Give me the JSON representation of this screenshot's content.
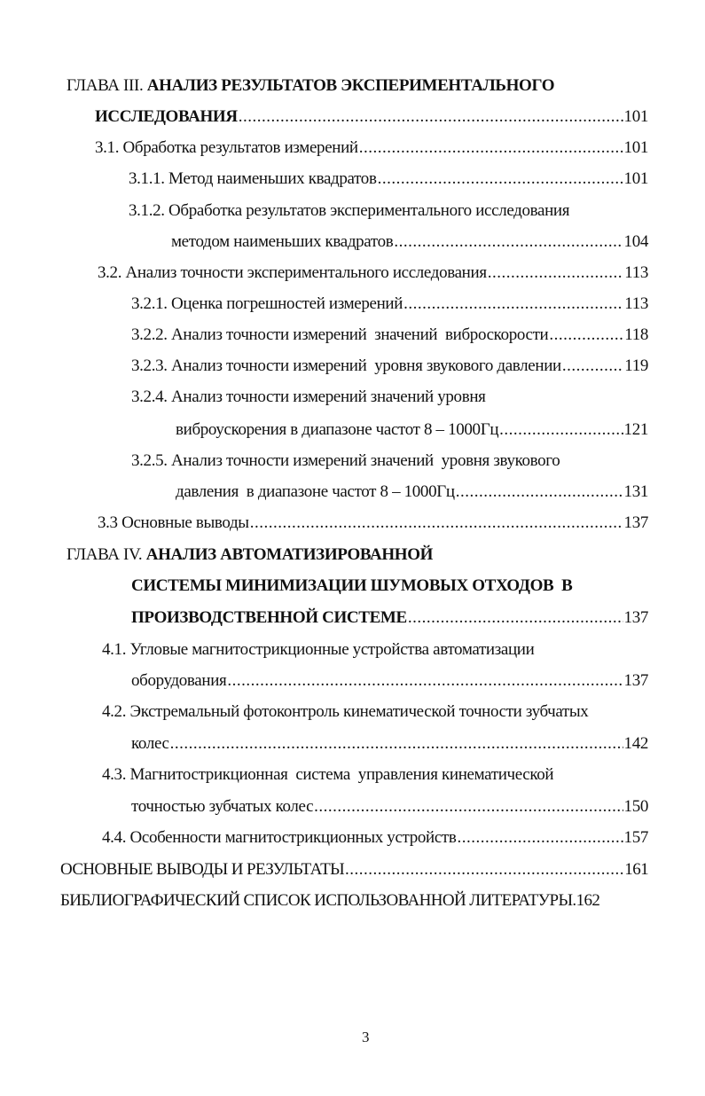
{
  "toc": [
    {
      "prefix": "ГЛАВА III. ",
      "text": "АНАЛИЗ РЕЗУЛЬТАТОВ ЭКСПЕРИМЕНТАЛЬНОГО",
      "bold": true,
      "page": null
    },
    {
      "prefix": "",
      "text": "ИССЛЕДОВАНИЯ",
      "bold": true,
      "page": "101"
    },
    {
      "prefix": "",
      "text": "3.1. Обработка результатов измерений",
      "bold": false,
      "page": "101"
    },
    {
      "prefix": "",
      "text": "3.1.1. Метод наименьших квадратов",
      "bold": false,
      "page": "101"
    },
    {
      "prefix": "",
      "text": "3.1.2. Обработка результатов экспериментального исследования",
      "bold": false,
      "page": null
    },
    {
      "prefix": "",
      "text": "методом наименьших квадратов",
      "bold": false,
      "page": "104"
    },
    {
      "prefix": "",
      "text": "3.2. Анализ точности экспериментального исследования",
      "bold": false,
      "page": "113"
    },
    {
      "prefix": "",
      "text": "3.2.1. Оценка погрешностей измерений",
      "bold": false,
      "page": "113"
    },
    {
      "prefix": "",
      "text": "3.2.2. Анализ точности измерений  значений  виброскорости",
      "bold": false,
      "page": "118"
    },
    {
      "prefix": "",
      "text": "3.2.3. Анализ точности измерений  уровня звукового давлении",
      "bold": false,
      "page": "119"
    },
    {
      "prefix": "",
      "text": "3.2.4. Анализ точности измерений значений уровня",
      "bold": false,
      "page": null
    },
    {
      "prefix": "",
      "text": "виброускорения в диапазоне частот 8 – 1000Гц",
      "bold": false,
      "page": "121"
    },
    {
      "prefix": "",
      "text": "3.2.5. Анализ точности измерений значений  уровня звукового",
      "bold": false,
      "page": null
    },
    {
      "prefix": "",
      "text": "давления  в диапазоне частот 8 – 1000Гц",
      "bold": false,
      "page": "131"
    },
    {
      "prefix": "",
      "text": "3.3 Основные выводы",
      "bold": false,
      "page": "137"
    },
    {
      "prefix": "ГЛАВА IV. ",
      "text": "АНАЛИЗ АВТОМАТИЗИРОВАННОЙ",
      "bold": true,
      "page": null
    },
    {
      "prefix": "",
      "text": "СИСТЕМЫ МИНИМИЗАЦИИ ШУМОВЫХ ОТХОДОВ  В",
      "bold": true,
      "page": null
    },
    {
      "prefix": "",
      "text": "ПРОИЗВОДСТВЕННОЙ СИСТЕМЕ",
      "bold": true,
      "page": "137"
    },
    {
      "prefix": "",
      "text": "4.1. Угловые магнитострикционные устройства автоматизации",
      "bold": false,
      "page": null
    },
    {
      "prefix": "",
      "text": "оборудования",
      "bold": false,
      "page": "137"
    },
    {
      "prefix": "",
      "text": "4.2. Экстремальный фотоконтроль кинематической точности зубчатых",
      "bold": false,
      "page": null
    },
    {
      "prefix": "",
      "text": "колес",
      "bold": false,
      "page": "142"
    },
    {
      "prefix": "",
      "text": "4.3. Магнитострикционная  система  управления кинематической",
      "bold": false,
      "page": null
    },
    {
      "prefix": "",
      "text": "точностью зубчатых колес",
      "bold": false,
      "page": "150"
    },
    {
      "prefix": "",
      "text": "4.4. Особенности магнитострикционных устройств",
      "bold": false,
      "page": "157"
    },
    {
      "prefix": "",
      "text": "ОСНОВНЫЕ ВЫВОДЫ И РЕЗУЛЬТАТЫ",
      "bold": false,
      "page": "161"
    },
    {
      "prefix": "",
      "text": "БИБЛИОГРАФИЧЕСКИЙ СПИСОК ИСПОЛЬЗОВАННОЙ ЛИТЕРАТУРЫ.",
      "bold": false,
      "page": "162",
      "inline_page": true
    }
  ],
  "page_number": "3"
}
